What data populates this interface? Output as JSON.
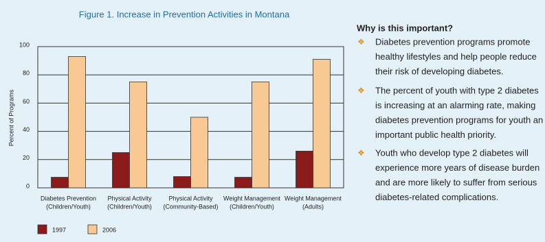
{
  "chart_data": {
    "type": "bar",
    "title": "Figure 1. Increase in Prevention Activities in Montana",
    "y_label": "Percent of Programs",
    "categories": [
      [
        "Diabetes Prevention",
        "(Children/Youth)"
      ],
      [
        "Physical Activity",
        "(Children/Youth)"
      ],
      [
        "Physical Activity",
        "(Community-Based)"
      ],
      [
        "Weight Management",
        "(Children/Youth)"
      ],
      [
        "Weight Management",
        "(Adults)"
      ]
    ],
    "series": [
      {
        "name": "1997",
        "color": "#8b1a1a",
        "values": [
          7.5,
          25,
          8,
          7.5,
          26
        ]
      },
      {
        "name": "2006",
        "color": "#f9c994",
        "values": [
          93,
          75,
          50,
          75,
          91
        ]
      }
    ],
    "ylim": [
      0,
      100
    ],
    "yticks": [
      0,
      20,
      40,
      60,
      80,
      100
    ],
    "grid": true
  },
  "side": {
    "heading": "Why is this important?",
    "bullet_symbol": "❖",
    "bullets": [
      [
        "Diabetes prevention programs promote",
        "healthy lifestyles and help people reduce",
        "their risk of developing diabetes."
      ],
      [
        "The percent of youth with type 2 diabetes",
        "is increasing at an alarming rate, making",
        "diabetes prevention programs for youth an",
        "important public health priority."
      ],
      [
        "Youth who develop type 2 diabetes will",
        "experience more years of disease burden",
        "and are more likely to suffer from serious",
        "diabetes-related complications."
      ]
    ]
  }
}
